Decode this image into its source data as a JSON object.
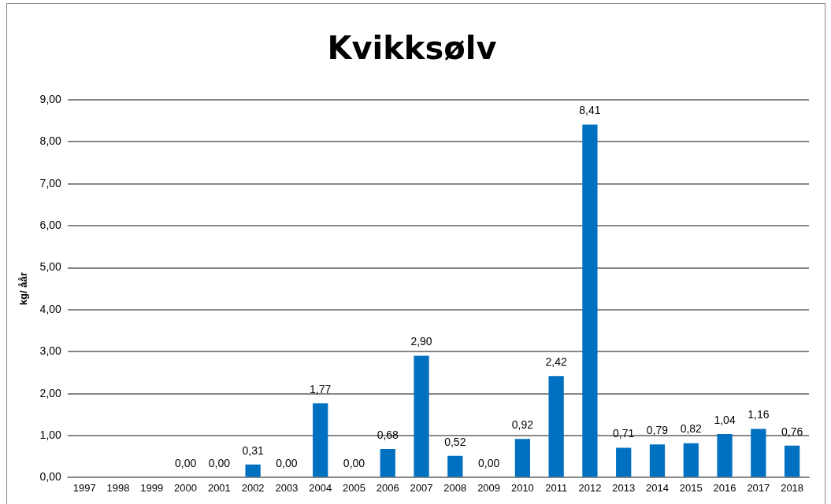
{
  "chart_data": {
    "type": "bar",
    "title": "Kvikksølv",
    "ylabel": "kg/ åår",
    "categories": [
      "1997",
      "1998",
      "1999",
      "2000",
      "2001",
      "2002",
      "2003",
      "2004",
      "2005",
      "2006",
      "2007",
      "2008",
      "2009",
      "2010",
      "2011",
      "2012",
      "2013",
      "2014",
      "2015",
      "2016",
      "2017",
      "2018"
    ],
    "values": [
      null,
      null,
      null,
      0.0,
      0.0,
      0.31,
      0.0,
      1.77,
      0.0,
      0.68,
      2.9,
      0.52,
      0.0,
      0.92,
      2.42,
      8.41,
      0.71,
      0.79,
      0.82,
      1.04,
      1.16,
      0.76
    ],
    "value_labels": [
      null,
      null,
      null,
      "0,00",
      "0,00",
      "0,31",
      "0,00",
      "1,77",
      "0,00",
      "0,68",
      "2,90",
      "0,52",
      "0,00",
      "0,92",
      "2,42",
      "8,41",
      "0,71",
      "0,79",
      "0,82",
      "1,04",
      "1,16",
      "0,76"
    ],
    "color": "#0070c0",
    "ylim": [
      0,
      9
    ],
    "yticks": [
      {
        "value": 0,
        "label": "0,00"
      },
      {
        "value": 1,
        "label": "1,00"
      },
      {
        "value": 2,
        "label": "2,00"
      },
      {
        "value": 3,
        "label": "3,00"
      },
      {
        "value": 4,
        "label": "4,00"
      },
      {
        "value": 5,
        "label": "5,00"
      },
      {
        "value": 6,
        "label": "6,00"
      },
      {
        "value": 7,
        "label": "7,00"
      },
      {
        "value": 8,
        "label": "8,00"
      },
      {
        "value": 9,
        "label": "9,00"
      }
    ],
    "grid": "y"
  }
}
